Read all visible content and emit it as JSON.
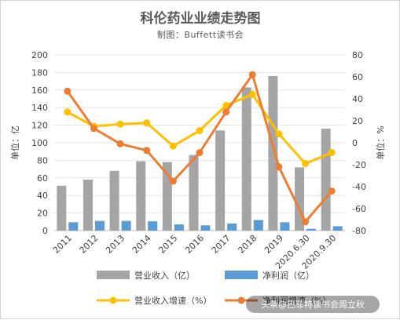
{
  "chart_data": {
    "type": "bar",
    "title": "科伦药业业绩走势图",
    "subtitle": "制图：Buffett读书会",
    "categories": [
      "2011",
      "2012",
      "2013",
      "2014",
      "2015",
      "2016",
      "2017",
      "2018",
      "2019",
      "2020.6.30",
      "2020.9.30"
    ],
    "left_axis": {
      "label": "单位：亿",
      "ylim": [
        0,
        200
      ],
      "ticks": [
        0,
        20,
        40,
        60,
        80,
        100,
        120,
        140,
        160,
        180,
        200
      ]
    },
    "right_axis": {
      "label": "单位：%",
      "ylim": [
        -80,
        80
      ],
      "ticks": [
        -80,
        -60,
        -40,
        -20,
        0,
        20,
        40,
        60,
        80
      ]
    },
    "grid": true,
    "legend_position": "bottom",
    "series": [
      {
        "name": "营业收入（亿）",
        "type": "bar",
        "axis": "left",
        "color": "#a5a5a5",
        "values": [
          51,
          58,
          68,
          79,
          78,
          86,
          114,
          163,
          176,
          72,
          116
        ]
      },
      {
        "name": "净利润（亿）",
        "type": "bar",
        "axis": "left",
        "color": "#5b9bd5",
        "values": [
          9.5,
          11,
          11,
          10.5,
          7,
          6,
          8,
          12,
          9.5,
          2,
          5
        ]
      },
      {
        "name": "营业收入增速（%）",
        "type": "line",
        "axis": "right",
        "color": "#ffc000",
        "values": [
          28,
          15,
          17,
          18,
          -3,
          11,
          34,
          44,
          8,
          -19,
          -9
        ]
      },
      {
        "name": "净利润增速（%）",
        "type": "line",
        "axis": "right",
        "color": "#ed7d31",
        "values": [
          47,
          13,
          -1,
          -7,
          -35,
          -9,
          28,
          62,
          -22,
          -72,
          -44
        ]
      }
    ]
  },
  "watermark": {
    "text": "头条@巴菲特读书会周立秋"
  }
}
